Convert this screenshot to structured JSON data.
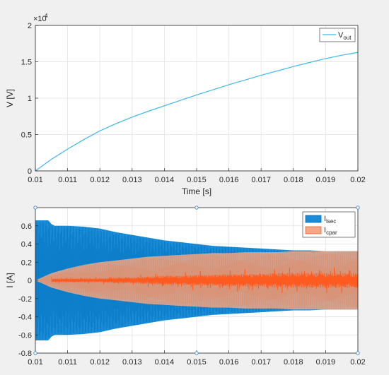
{
  "colors": {
    "figure_bg": "#f0f0f0",
    "axes_bg": "#ffffff",
    "axis_line": "#262626",
    "grid": "#dfdfdf",
    "vout": "#3eb7e6",
    "ilsec": "#0072bd",
    "ilsec_fill": "#1a8bd6",
    "icpar": "#ff5a1f",
    "icpar_fill": "#f0a888",
    "selection_handles": "#4a8fd0"
  },
  "chart_data": [
    {
      "type": "line",
      "xlabel": "Time [s]",
      "ylabel": "V [V]",
      "y_exponent_label": "×10",
      "y_exponent_power": "4",
      "xlim": [
        0.01,
        0.02
      ],
      "ylim": [
        0,
        20000
      ],
      "xticks": [
        0.01,
        0.011,
        0.012,
        0.013,
        0.014,
        0.015,
        0.016,
        0.017,
        0.018,
        0.019,
        0.02
      ],
      "xtick_labels": [
        "0.01",
        "0.011",
        "0.012",
        "0.013",
        "0.014",
        "0.015",
        "0.016",
        "0.017",
        "0.018",
        "0.019",
        "0.02"
      ],
      "yticks": [
        0,
        5000,
        10000,
        15000,
        20000
      ],
      "ytick_labels": [
        "0",
        "0.5",
        "1",
        "1.5",
        "2"
      ],
      "grid": true,
      "legend_position": "top-right",
      "series": [
        {
          "name": "V",
          "name_subscript": "out",
          "x": [
            0.01,
            0.0105,
            0.011,
            0.0115,
            0.012,
            0.0125,
            0.013,
            0.0135,
            0.014,
            0.0145,
            0.015,
            0.0155,
            0.016,
            0.0165,
            0.017,
            0.0175,
            0.018,
            0.0185,
            0.019,
            0.0195,
            0.02
          ],
          "values": [
            0,
            1600,
            3000,
            4300,
            5500,
            6500,
            7400,
            8200,
            8950,
            9700,
            10450,
            11150,
            11850,
            12500,
            13150,
            13750,
            14350,
            14900,
            15450,
            15900,
            16300
          ]
        }
      ]
    },
    {
      "type": "area",
      "xlabel": "",
      "ylabel": "I [A]",
      "xlim": [
        0.01,
        0.02
      ],
      "ylim": [
        -0.8,
        0.8
      ],
      "xticks": [
        0.01,
        0.011,
        0.012,
        0.013,
        0.014,
        0.015,
        0.016,
        0.017,
        0.018,
        0.019,
        0.02
      ],
      "xtick_labels": [
        "0.01",
        "0.011",
        "0.012",
        "0.013",
        "0.014",
        "0.015",
        "0.016",
        "0.017",
        "0.018",
        "0.019",
        "0.02"
      ],
      "yticks": [
        -0.8,
        -0.6,
        -0.4,
        -0.2,
        0,
        0.2,
        0.4,
        0.6
      ],
      "ytick_labels": [
        "-0.8",
        "-0.6",
        "-0.4",
        "-0.2",
        "0",
        "0.2",
        "0.4",
        "0.6"
      ],
      "grid": true,
      "legend_position": "top-right",
      "series": [
        {
          "name": "I",
          "name_subscript": "lsec",
          "envelope_x": [
            0.01,
            0.0104,
            0.0105,
            0.0106,
            0.011,
            0.0115,
            0.012,
            0.0125,
            0.013,
            0.0135,
            0.014,
            0.0145,
            0.015,
            0.0155,
            0.016,
            0.0165,
            0.017,
            0.0175,
            0.018,
            0.0185,
            0.019,
            0.0195,
            0.02
          ],
          "envelope_upper": [
            0.66,
            0.66,
            0.62,
            0.6,
            0.6,
            0.59,
            0.57,
            0.53,
            0.5,
            0.47,
            0.44,
            0.42,
            0.4,
            0.38,
            0.37,
            0.36,
            0.35,
            0.34,
            0.33,
            0.33,
            0.32,
            0.32,
            0.32
          ],
          "envelope_lower": [
            -0.66,
            -0.66,
            -0.62,
            -0.6,
            -0.6,
            -0.59,
            -0.57,
            -0.53,
            -0.5,
            -0.47,
            -0.44,
            -0.42,
            -0.4,
            -0.38,
            -0.37,
            -0.36,
            -0.35,
            -0.34,
            -0.33,
            -0.33,
            -0.32,
            -0.32,
            -0.32
          ]
        },
        {
          "name": "I",
          "name_subscript": "cpar",
          "envelope_x": [
            0.01,
            0.0105,
            0.011,
            0.0115,
            0.012,
            0.0125,
            0.013,
            0.0135,
            0.014,
            0.0145,
            0.015,
            0.0155,
            0.016,
            0.0165,
            0.017,
            0.0175,
            0.018,
            0.0185,
            0.019,
            0.0195,
            0.02
          ],
          "envelope_upper": [
            0.0,
            0.08,
            0.13,
            0.17,
            0.2,
            0.22,
            0.24,
            0.26,
            0.27,
            0.28,
            0.29,
            0.3,
            0.3,
            0.31,
            0.31,
            0.31,
            0.32,
            0.32,
            0.32,
            0.32,
            0.32
          ],
          "envelope_lower": [
            0.0,
            -0.08,
            -0.13,
            -0.17,
            -0.2,
            -0.22,
            -0.24,
            -0.26,
            -0.27,
            -0.28,
            -0.29,
            -0.3,
            -0.3,
            -0.31,
            -0.31,
            -0.31,
            -0.32,
            -0.32,
            -0.32,
            -0.32,
            -0.32
          ],
          "dense_core_amplitude": [
            0.0,
            0.02,
            0.02,
            0.02,
            0.02,
            0.03,
            0.03,
            0.04,
            0.05,
            0.05,
            0.06,
            0.06,
            0.07,
            0.07,
            0.07,
            0.08,
            0.08,
            0.08,
            0.08,
            0.08,
            0.08
          ]
        }
      ]
    }
  ]
}
